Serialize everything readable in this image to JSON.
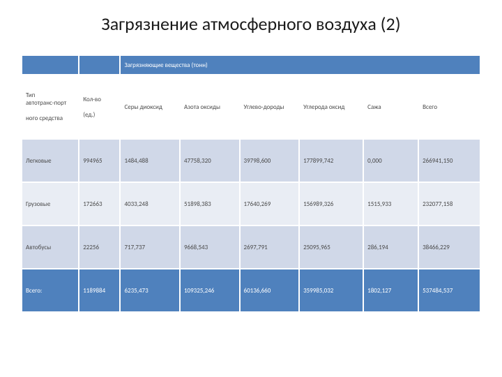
{
  "title": "Загрязнение атмосферного воздуха (2)",
  "table": {
    "group_header": "Загрязняющие вещества (тонн)",
    "col_headers": {
      "type_line1": "Тип",
      "type_line2": "автотранс-порт",
      "type_line3": "ного средства",
      "qty_line1": "Кол-во",
      "qty_line2": "(ед.)",
      "c1": "Серы диоксид",
      "c2": "Азота оксиды",
      "c3": "Углево-дороды",
      "c4": "Углерода оксид",
      "c5": "Сажа",
      "c6": "Всего"
    },
    "rows": [
      {
        "label": "Легковые",
        "qty": "994965",
        "c1": "1484,488",
        "c2": "47758,320",
        "c3": "39798,600",
        "c4": "177899,742",
        "c5": "0,000",
        "c6": "266941,150"
      },
      {
        "label": "Грузовые",
        "qty": "172663",
        "c1": "4033,248",
        "c2": "51898,383",
        "c3": "17640,269",
        "c4": "156989,326",
        "c5": "1515,933",
        "c6": "232077,158"
      },
      {
        "label": "Автобусы",
        "qty": "22256",
        "c1": "717,737",
        "c2": "9668,543",
        "c3": "2697,791",
        "c4": "25095,965",
        "c5": "286,194",
        "c6": "38466,229"
      },
      {
        "label": "Всего:",
        "qty": "1189884",
        "c1": "6235,473",
        "c2": "109325,246",
        "c3": "60136,660",
        "c4": "359985,032",
        "c5": "1802,127",
        "c6": "537484,537"
      }
    ]
  },
  "colors": {
    "header_blue": "#4f81bd",
    "row_light": "#d0d8e8",
    "row_mid": "#e9edf4",
    "border": "#ffffff",
    "text_dark": "#4a4a4a",
    "text_white": "#ffffff"
  }
}
